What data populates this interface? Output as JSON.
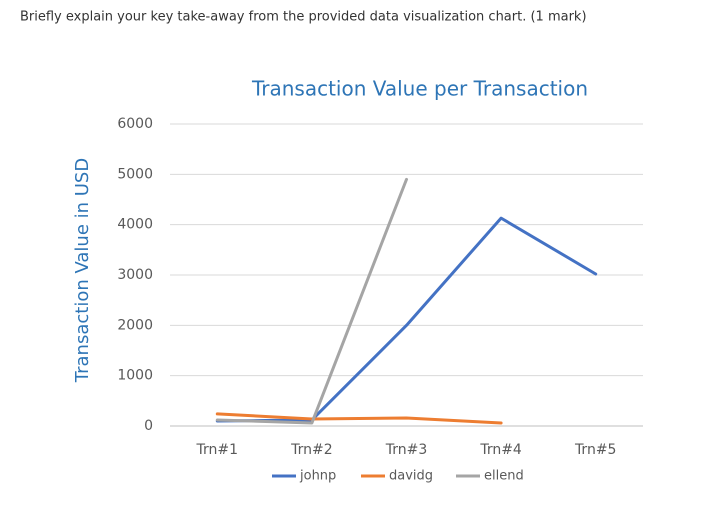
{
  "question": "Briefly explain your key take-away from the provided data visualization chart. (1 mark)",
  "chart_data": {
    "type": "line",
    "title": "Transaction Value per Transaction",
    "y_label": "Transaction Value in USD",
    "categories": [
      "Trn#1",
      "Trn#2",
      "Trn#3",
      "Trn#4",
      "Trn#5"
    ],
    "series": [
      {
        "name": "johnp",
        "color": "#4472c4",
        "values": [
          100,
          120,
          2000,
          4130,
          3020
        ]
      },
      {
        "name": "davidg",
        "color": "#ed7d31",
        "values": [
          240,
          140,
          160,
          60,
          null
        ]
      },
      {
        "name": "ellend",
        "color": "#a5a5a5",
        "values": [
          120,
          60,
          4900,
          null,
          null
        ]
      }
    ],
    "ylim": [
      0,
      6000
    ],
    "yticks": [
      0,
      1000,
      2000,
      3000,
      4000,
      5000,
      6000
    ],
    "grid": true,
    "legend": "bottom"
  }
}
